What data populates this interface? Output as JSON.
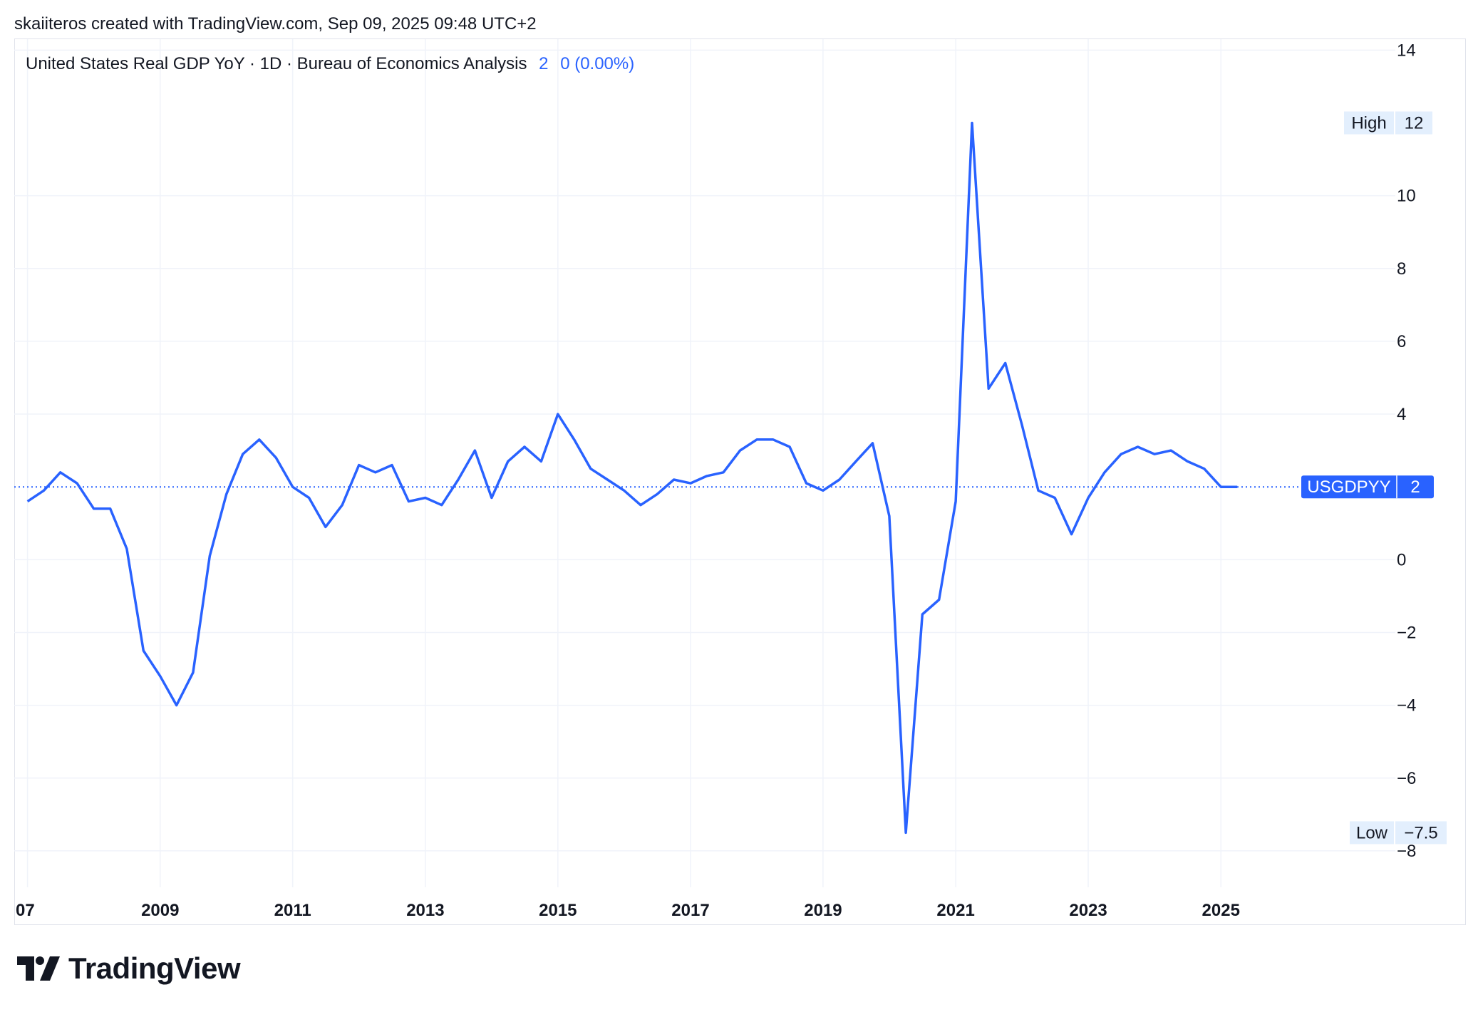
{
  "header": {
    "credit": "skaiiteros created with TradingView.com, Sep 09, 2025 09:48 UTC+2"
  },
  "legend": {
    "title": "United States Real GDP YoY · 1D · Bureau of Economics Analysis",
    "value": "2",
    "change": "0 (0.00%)"
  },
  "labels": {
    "high": {
      "text": "High",
      "value": "12"
    },
    "low": {
      "text": "Low",
      "value": "−7.5"
    },
    "symbol": {
      "text": "USGDPYY",
      "value": "2"
    }
  },
  "colors": {
    "line": "#2962ff",
    "grid": "#f0f3fa",
    "label_bg": "#e3effd",
    "axis_text": "#131722"
  },
  "logo": {
    "text": "TradingView",
    "icon": "tradingview-logo-icon"
  },
  "chart_data": {
    "type": "line",
    "series": [
      {
        "name": "USGDPYY",
        "points": [
          [
            "2007-01-01",
            1.6
          ],
          [
            "2007-04-01",
            1.9
          ],
          [
            "2007-07-01",
            2.4
          ],
          [
            "2007-10-01",
            2.1
          ],
          [
            "2008-01-01",
            1.4
          ],
          [
            "2008-04-01",
            1.4
          ],
          [
            "2008-07-01",
            0.3
          ],
          [
            "2008-10-01",
            -2.5
          ],
          [
            "2009-01-01",
            -3.2
          ],
          [
            "2009-04-01",
            -4.0
          ],
          [
            "2009-07-01",
            -3.1
          ],
          [
            "2009-10-01",
            0.1
          ],
          [
            "2010-01-01",
            1.8
          ],
          [
            "2010-04-01",
            2.9
          ],
          [
            "2010-07-01",
            3.3
          ],
          [
            "2010-10-01",
            2.8
          ],
          [
            "2011-01-01",
            2.0
          ],
          [
            "2011-04-01",
            1.7
          ],
          [
            "2011-07-01",
            0.9
          ],
          [
            "2011-10-01",
            1.5
          ],
          [
            "2012-01-01",
            2.6
          ],
          [
            "2012-04-01",
            2.4
          ],
          [
            "2012-07-01",
            2.6
          ],
          [
            "2012-10-01",
            1.6
          ],
          [
            "2013-01-01",
            1.7
          ],
          [
            "2013-04-01",
            1.5
          ],
          [
            "2013-07-01",
            2.2
          ],
          [
            "2013-10-01",
            3.0
          ],
          [
            "2014-01-01",
            1.7
          ],
          [
            "2014-04-01",
            2.7
          ],
          [
            "2014-07-01",
            3.1
          ],
          [
            "2014-10-01",
            2.7
          ],
          [
            "2015-01-01",
            4.0
          ],
          [
            "2015-04-01",
            3.3
          ],
          [
            "2015-07-01",
            2.5
          ],
          [
            "2015-10-01",
            2.2
          ],
          [
            "2016-01-01",
            1.9
          ],
          [
            "2016-04-01",
            1.5
          ],
          [
            "2016-07-01",
            1.8
          ],
          [
            "2016-10-01",
            2.2
          ],
          [
            "2017-01-01",
            2.1
          ],
          [
            "2017-04-01",
            2.3
          ],
          [
            "2017-07-01",
            2.4
          ],
          [
            "2017-10-01",
            3.0
          ],
          [
            "2018-01-01",
            3.3
          ],
          [
            "2018-04-01",
            3.3
          ],
          [
            "2018-07-01",
            3.1
          ],
          [
            "2018-10-01",
            2.1
          ],
          [
            "2019-01-01",
            1.9
          ],
          [
            "2019-04-01",
            2.2
          ],
          [
            "2019-07-01",
            2.7
          ],
          [
            "2019-10-01",
            3.2
          ],
          [
            "2020-01-01",
            1.2
          ],
          [
            "2020-04-01",
            -7.5
          ],
          [
            "2020-07-01",
            -1.5
          ],
          [
            "2020-10-01",
            -1.1
          ],
          [
            "2021-01-01",
            1.6
          ],
          [
            "2021-04-01",
            12.0
          ],
          [
            "2021-07-01",
            4.7
          ],
          [
            "2021-10-01",
            5.4
          ],
          [
            "2022-01-01",
            3.7
          ],
          [
            "2022-04-01",
            1.9
          ],
          [
            "2022-07-01",
            1.7
          ],
          [
            "2022-10-01",
            0.7
          ],
          [
            "2023-01-01",
            1.7
          ],
          [
            "2023-04-01",
            2.4
          ],
          [
            "2023-07-01",
            2.9
          ],
          [
            "2023-10-01",
            3.1
          ],
          [
            "2024-01-01",
            2.9
          ],
          [
            "2024-04-01",
            3.0
          ],
          [
            "2024-07-01",
            2.7
          ],
          [
            "2024-10-01",
            2.5
          ],
          [
            "2025-01-01",
            2.0
          ],
          [
            "2025-04-01",
            2.0
          ]
        ]
      }
    ],
    "x_ticks": [
      {
        "date": "2007-01-01",
        "label": "07"
      },
      {
        "date": "2009-01-01",
        "label": "2009"
      },
      {
        "date": "2011-01-01",
        "label": "2011"
      },
      {
        "date": "2013-01-01",
        "label": "2013"
      },
      {
        "date": "2015-01-01",
        "label": "2015"
      },
      {
        "date": "2017-01-01",
        "label": "2017"
      },
      {
        "date": "2019-01-01",
        "label": "2019"
      },
      {
        "date": "2021-01-01",
        "label": "2021"
      },
      {
        "date": "2023-01-01",
        "label": "2023"
      },
      {
        "date": "2025-01-01",
        "label": "2025"
      }
    ],
    "y_ticks": [
      {
        "value": 14,
        "label": "14"
      },
      {
        "value": 10,
        "label": "10"
      },
      {
        "value": 8,
        "label": "8"
      },
      {
        "value": 6,
        "label": "6"
      },
      {
        "value": 4,
        "label": "4"
      },
      {
        "value": 0,
        "label": "0"
      },
      {
        "value": -2,
        "label": "−2"
      },
      {
        "value": -4,
        "label": "−4"
      },
      {
        "value": -6,
        "label": "−6"
      },
      {
        "value": -8,
        "label": "−8"
      }
    ],
    "ylim": [
      -9,
      14.3
    ],
    "xlim": [
      "2006-10-20",
      "2027-08-20"
    ],
    "grid": true,
    "last_value": 2
  }
}
